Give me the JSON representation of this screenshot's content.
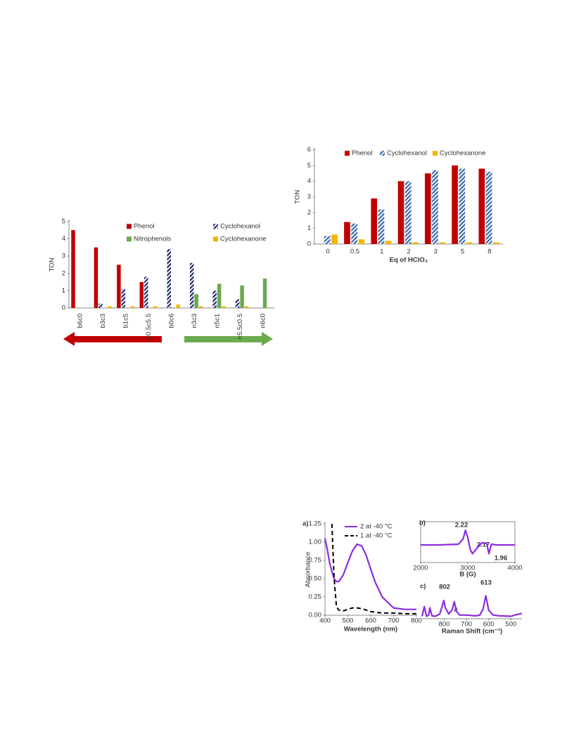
{
  "chart_data": [
    {
      "type": "bar",
      "ylabel": "TON",
      "categories": [
        "b6c0",
        "b3c3",
        "b1c5",
        "b0.5c5.5",
        "b0c6",
        "n3c3",
        "n5c1",
        "n5.5c0.5",
        "n6c0"
      ],
      "series": [
        {
          "name": "Phenol",
          "color": "#c00000",
          "values": [
            4.5,
            3.5,
            2.5,
            1.5,
            0,
            0,
            0,
            0,
            0
          ]
        },
        {
          "name": "Cyclohexanol",
          "color": "#1f2d6b",
          "hatch": true,
          "values": [
            0,
            0.25,
            1.1,
            1.8,
            3.4,
            2.6,
            1.0,
            0.5,
            0
          ]
        },
        {
          "name": "Nitrophenols",
          "color": "#6aaa4f",
          "values": [
            0,
            0,
            0,
            0,
            0,
            0.8,
            1.4,
            1.3,
            1.7
          ]
        },
        {
          "name": "Cyclohexanone",
          "color": "#f2b800",
          "values": [
            0,
            0.1,
            0.1,
            0.1,
            0.2,
            0.1,
            0.1,
            0.1,
            0
          ]
        }
      ],
      "ylim": [
        0,
        5
      ],
      "yticks": [
        0,
        1,
        2,
        3,
        4,
        5
      ]
    },
    {
      "type": "bar",
      "ylabel": "TON",
      "xlabel": "Eq of HClO₄",
      "categories": [
        "0",
        "0.5",
        "1",
        "2",
        "3",
        "5",
        "8"
      ],
      "series": [
        {
          "name": "Phenol",
          "color": "#c00000",
          "values": [
            null,
            1.4,
            2.9,
            4.0,
            4.5,
            5.0,
            4.8
          ]
        },
        {
          "name": "Cyclohexanol",
          "color": "#3a6aa8",
          "hatch": true,
          "values": [
            0.5,
            1.3,
            2.2,
            4.0,
            4.7,
            4.8,
            4.6
          ]
        },
        {
          "name": "Cyclohexanone",
          "color": "#f2b800",
          "values": [
            0.6,
            0.3,
            0.2,
            0.1,
            0.1,
            0.1,
            0.1
          ]
        }
      ],
      "ylim": [
        0,
        6
      ],
      "yticks": [
        0,
        1,
        2,
        3,
        4,
        5,
        6
      ]
    },
    {
      "type": "line",
      "panel_label": "a)",
      "ylabel": "Absorbance",
      "xlabel": "Wavelength (nm)",
      "x": [
        400,
        410,
        420,
        430,
        440,
        450,
        460,
        480,
        500,
        520,
        540,
        560,
        580,
        600,
        620,
        650,
        700,
        750,
        800
      ],
      "series": [
        {
          "name": "2 at -40 °C",
          "color": "#8b2be2",
          "values": [
            1.05,
            0.9,
            0.72,
            0.6,
            0.5,
            0.46,
            0.46,
            0.55,
            0.72,
            0.88,
            0.97,
            0.95,
            0.82,
            0.63,
            0.45,
            0.25,
            0.1,
            0.08,
            0.08
          ]
        },
        {
          "name": "1 at -40 °C",
          "color": "#000000",
          "dash": true,
          "values": [
            null,
            null,
            null,
            1.25,
            0.5,
            0.12,
            0.07,
            0.06,
            0.08,
            0.1,
            0.1,
            0.09,
            0.07,
            0.05,
            0.04,
            0.03,
            0.03,
            0.02,
            0.02
          ]
        }
      ],
      "xlim": [
        400,
        800
      ],
      "xticks": [
        400,
        500,
        600,
        700,
        800
      ],
      "ylim": [
        0,
        1.25
      ],
      "yticks": [
        {
          "value": 0,
          "label": "0.00"
        },
        0.25,
        {
          "value": 0.5,
          "label": "0.50"
        },
        0.75,
        {
          "value": 1,
          "label": "1.00"
        },
        1.25
      ]
    },
    {
      "type": "line",
      "panel_label": "b)",
      "xlabel": "B (G)",
      "annotations": [
        "2.22",
        "2.17",
        "1.96"
      ],
      "x": [
        2000,
        2400,
        2800,
        2900,
        2950,
        3000,
        3050,
        3100,
        3200,
        3300,
        3400,
        3450,
        3500,
        3600,
        3700,
        3800,
        4000
      ],
      "series": [
        {
          "color": "#8b2be2",
          "values": [
            0,
            0,
            0.05,
            0.4,
            1.0,
            0.5,
            -0.3,
            -0.6,
            -0.2,
            0.15,
            0.1,
            -0.6,
            0.05,
            0,
            0,
            0,
            0
          ]
        }
      ],
      "xlim": [
        2000,
        4000
      ],
      "xticks": [
        2000,
        3000,
        4000
      ],
      "ylim": [
        -1.2,
        1.2
      ]
    },
    {
      "type": "line",
      "panel_label": "c)",
      "xlabel": "Raman Shift (cm⁻¹)",
      "annotations": [
        "802",
        "613",
        "#"
      ],
      "x": [
        900,
        890,
        880,
        870,
        865,
        855,
        840,
        820,
        810,
        802,
        795,
        780,
        765,
        755,
        745,
        730,
        700,
        660,
        640,
        625,
        613,
        600,
        580,
        550,
        500,
        470,
        450
      ],
      "series": [
        {
          "color": "#8b2be2",
          "values": [
            0.1,
            0.5,
            0.1,
            0.15,
            0.45,
            0.12,
            0.1,
            0.2,
            0.5,
            0.75,
            0.45,
            0.2,
            0.35,
            0.7,
            0.3,
            0.15,
            0.15,
            0.12,
            0.15,
            0.4,
            0.95,
            0.35,
            0.15,
            0.12,
            0.1,
            0.18,
            0.22
          ]
        }
      ],
      "xlim": [
        900,
        450
      ],
      "xticks": [
        800,
        700,
        600,
        500
      ],
      "ylim": [
        0,
        1.1
      ]
    }
  ]
}
